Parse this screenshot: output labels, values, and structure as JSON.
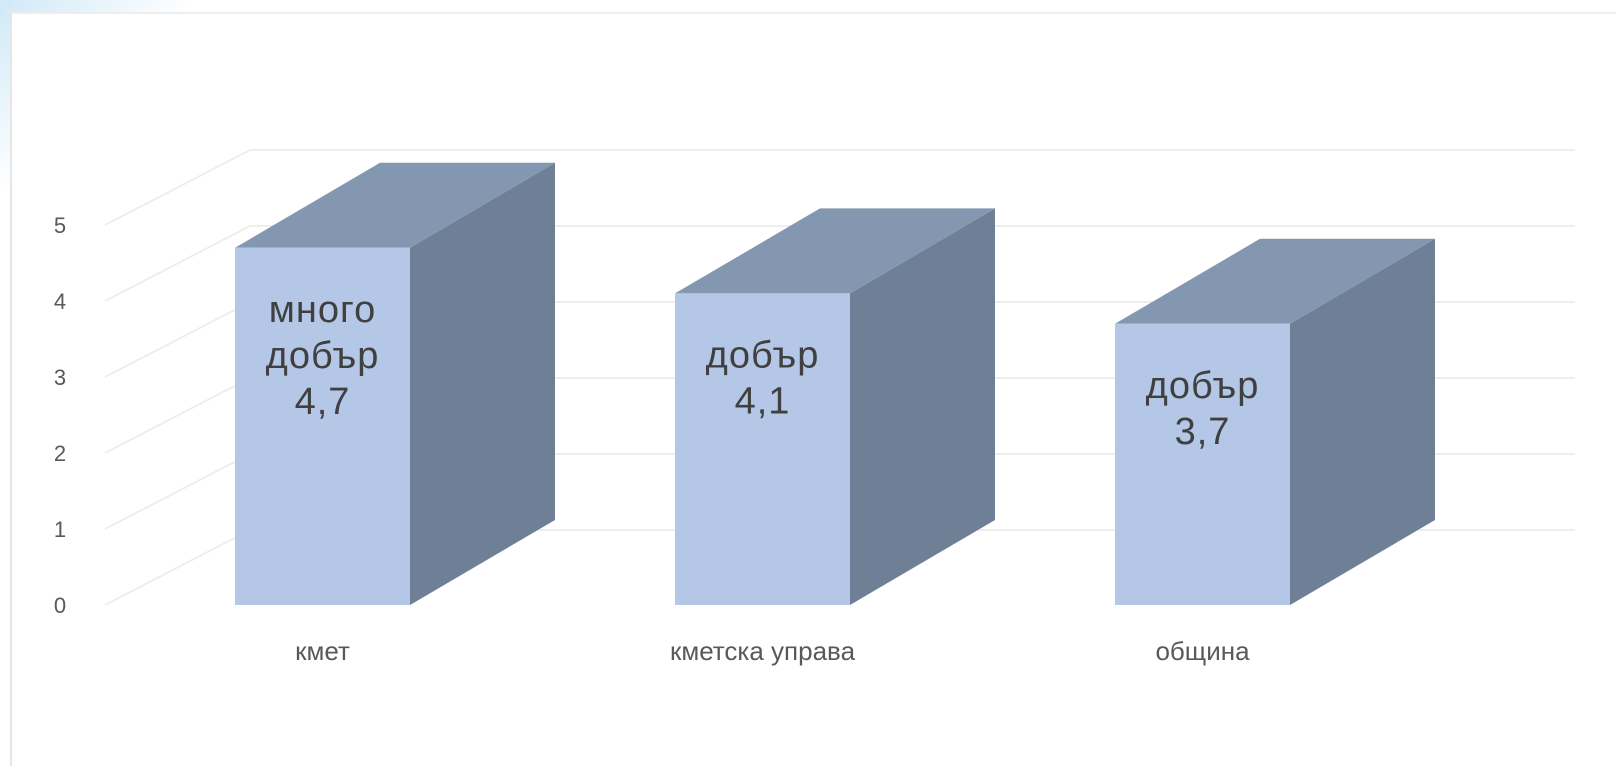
{
  "chart_data": {
    "type": "bar",
    "style": "3d-column",
    "categories": [
      "кмет",
      "кметска управа",
      "община"
    ],
    "values": [
      4.7,
      4.1,
      3.7
    ],
    "data_labels": [
      [
        "много",
        "добър",
        "4,7"
      ],
      [
        "добър",
        "4,1"
      ],
      [
        "добър",
        "3,7"
      ]
    ],
    "title": "",
    "xlabel": "",
    "ylabel": "",
    "ylim": [
      0,
      5
    ],
    "yticks": [
      "0",
      "1",
      "2",
      "3",
      "4",
      "5"
    ],
    "grid": true,
    "legend": "none",
    "colors": {
      "front": "#b4c7e7",
      "top": "#8497b0",
      "side": "#6f7f95",
      "grid": "#eeeeee",
      "text": "#595959"
    }
  }
}
